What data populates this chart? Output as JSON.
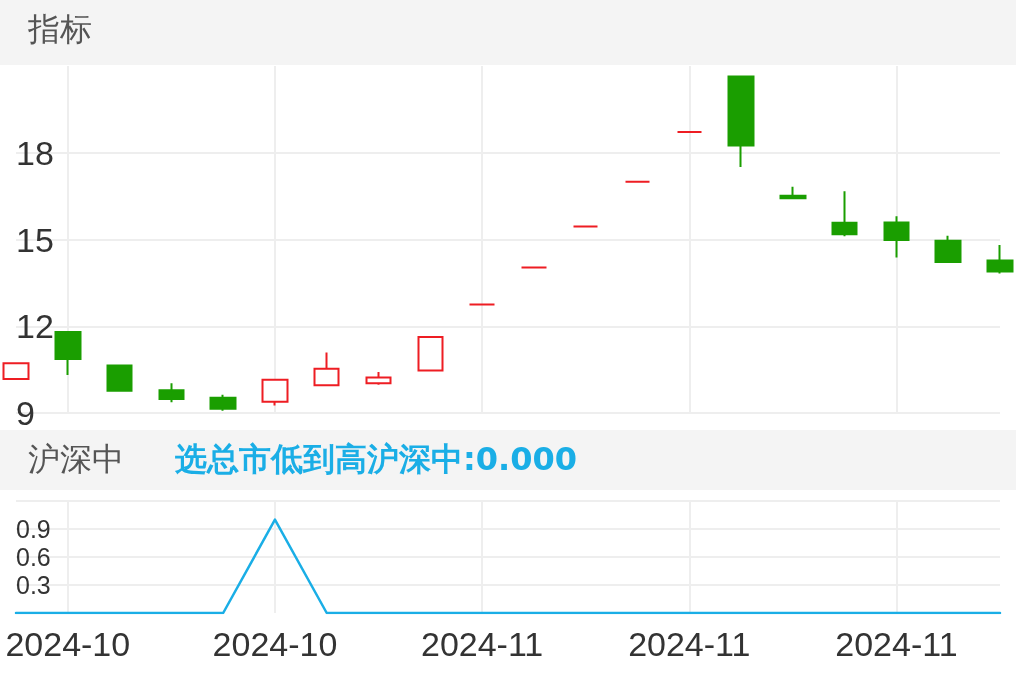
{
  "chart_data": [
    {
      "type": "candlestick",
      "title": "指标",
      "categories": [
        null,
        "2024-10",
        null,
        null,
        null,
        "2024-10",
        null,
        null,
        null,
        "2024-11",
        null,
        null,
        null,
        "2024-11",
        null,
        null,
        null,
        "2024-11",
        null,
        null
      ],
      "ohlc": [
        [
          10.18,
          10.72,
          10.18,
          10.72
        ],
        [
          11.8,
          11.8,
          10.31,
          10.87
        ],
        [
          10.64,
          10.64,
          9.77,
          9.77
        ],
        [
          9.79,
          10.03,
          9.37,
          9.48
        ],
        [
          9.53,
          9.63,
          9.08,
          9.15
        ],
        [
          9.39,
          10.15,
          9.26,
          10.15
        ],
        [
          9.96,
          11.09,
          9.96,
          10.53
        ],
        [
          10.03,
          10.42,
          9.98,
          10.23
        ],
        [
          10.47,
          11.63,
          10.47,
          11.63
        ],
        [
          12.75,
          12.75,
          12.75,
          12.75
        ],
        [
          14.03,
          14.03,
          14.03,
          14.03
        ],
        [
          15.45,
          15.45,
          15.45,
          15.45
        ],
        [
          17,
          17,
          17,
          17
        ],
        [
          18.72,
          18.72,
          18.72,
          18.72
        ],
        [
          20.64,
          20.64,
          17.51,
          18.25
        ],
        [
          16.51,
          16.82,
          16.43,
          16.43
        ],
        [
          15.58,
          16.67,
          15.11,
          15.18
        ],
        [
          15.59,
          15.8,
          14.38,
          14.98
        ],
        [
          14.96,
          15.13,
          14.19,
          14.22
        ],
        [
          14.27,
          14.81,
          13.82,
          13.89
        ]
      ],
      "colors": [
        "#ee1d23",
        "#1a9e00",
        "#1a9e00",
        "#1a9e00",
        "#1a9e00",
        "#ee1d23",
        "#ee1d23",
        "#ee1d23",
        "#ee1d23",
        "#ee1d23",
        "#ee1d23",
        "#ee1d23",
        "#ee1d23",
        "#ee1d23",
        "#1a9e00",
        "#1a9e00",
        "#1a9e00",
        "#1a9e00",
        "#1a9e00",
        "#1a9e00"
      ],
      "ylim": [
        9,
        21
      ],
      "yticks": [
        9,
        12,
        15,
        18
      ],
      "grid": true,
      "tick_labels": "y"
    },
    {
      "type": "line",
      "title": "沪深中",
      "categories": [
        null,
        "2024-10",
        null,
        null,
        null,
        "2024-10",
        null,
        null,
        null,
        "2024-11",
        null,
        null,
        null,
        "2024-11",
        null,
        null,
        null,
        "2024-11",
        null,
        null
      ],
      "series": [
        {
          "name": "选总市低到高沪深中:0.000",
          "color": "#1aaee6",
          "values": [
            0,
            0,
            0,
            0,
            0,
            1,
            0,
            0,
            0,
            0,
            0,
            0,
            0,
            0,
            0,
            0,
            0,
            0,
            0,
            0
          ]
        }
      ],
      "ylim": [
        0,
        1.2
      ],
      "yticks": [
        0.3,
        0.6,
        0.9,
        {
          "value": 1.2,
          "label": null
        }
      ],
      "grid": true,
      "legend": "top left",
      "marker": "none",
      "line_style": "solid"
    }
  ]
}
